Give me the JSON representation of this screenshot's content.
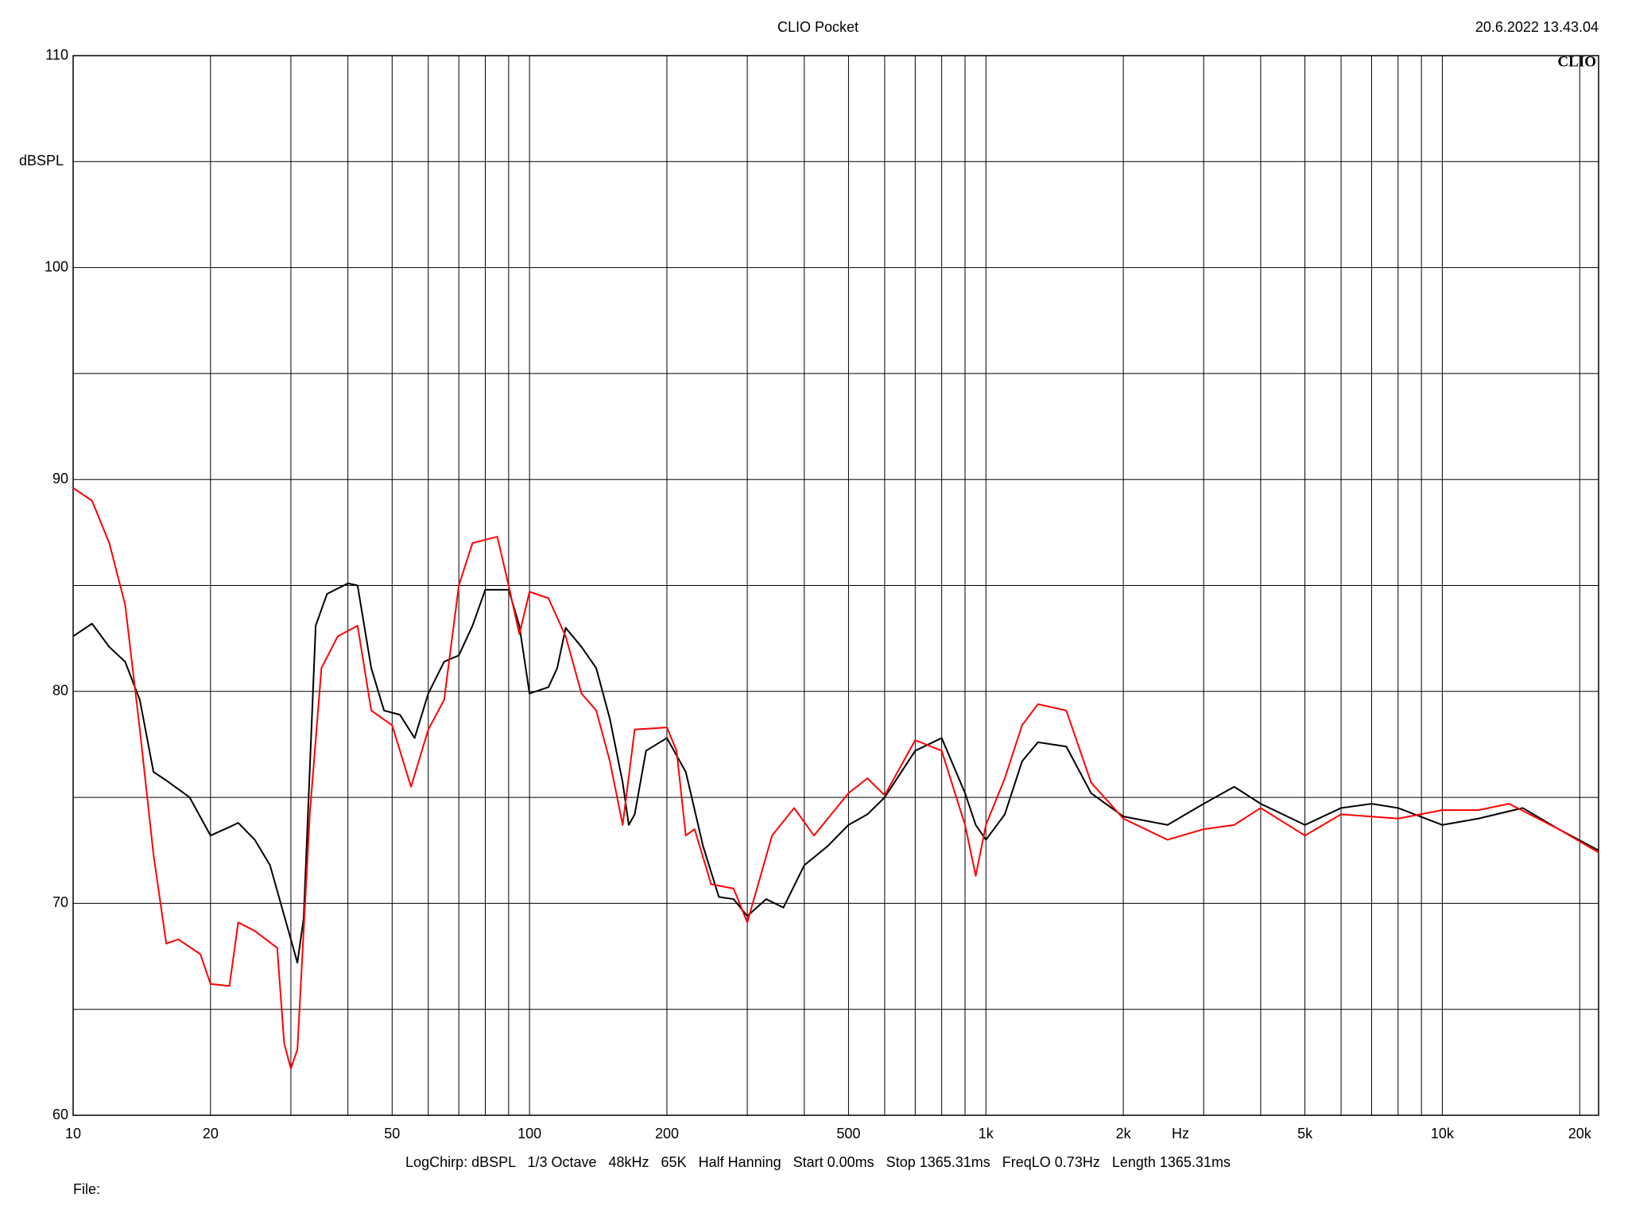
{
  "chart_data": {
    "type": "line",
    "title": "CLIO Pocket",
    "timestamp": "20.6.2022 13.43.04",
    "logo": "CLIO",
    "y_label": "dBSPL",
    "x_label": "Hz",
    "footer": "LogChirp: dBSPL   1/3 Octave   48kHz   65K   Half Hanning   Start 0.00ms   Stop 1365.31ms   FreqLO 0.73Hz   Length 1365.31ms",
    "file_label": "File:",
    "x_log": true,
    "grid": true,
    "xlim": [
      10,
      22000
    ],
    "ylim": [
      60,
      110
    ],
    "yticks": [
      60,
      70,
      80,
      90,
      100,
      110
    ],
    "ygrid_minor": [
      65,
      75,
      85,
      95,
      105
    ],
    "xticks": [
      10,
      20,
      50,
      100,
      200,
      500,
      {
        "value": 1000,
        "label": "1k"
      },
      {
        "value": 2000,
        "label": "2k"
      },
      {
        "value": 5000,
        "label": "5k"
      },
      {
        "value": 10000,
        "label": "10k"
      },
      {
        "value": 20000,
        "label": "20k"
      }
    ],
    "xgrid_minor": [
      30,
      40,
      60,
      70,
      80,
      90,
      300,
      400,
      600,
      700,
      800,
      900,
      3000,
      4000,
      6000,
      7000,
      8000,
      9000
    ],
    "series": [
      {
        "color": "#000000",
        "x": [
          10,
          11,
          12,
          13,
          14,
          15,
          16,
          18,
          20,
          22,
          23,
          25,
          27,
          30,
          31,
          32,
          34,
          36,
          40,
          42,
          45,
          48,
          52,
          56,
          60,
          65,
          70,
          75,
          80,
          90,
          95,
          100,
          110,
          115,
          120,
          130,
          140,
          150,
          160,
          165,
          170,
          180,
          200,
          220,
          240,
          260,
          280,
          300,
          330,
          360,
          400,
          450,
          500,
          550,
          600,
          700,
          800,
          900,
          950,
          1000,
          1100,
          1200,
          1300,
          1500,
          1700,
          2000,
          2500,
          3000,
          3500,
          4000,
          5000,
          6000,
          7000,
          8000,
          10000,
          12000,
          15000,
          18000,
          22000
        ],
        "values": [
          82.6,
          83.2,
          82.1,
          81.4,
          79.6,
          76.2,
          75.8,
          75.0,
          73.2,
          73.6,
          73.8,
          73.0,
          71.8,
          68.3,
          67.2,
          69.3,
          83.1,
          84.6,
          85.1,
          85.0,
          81.1,
          79.1,
          78.9,
          77.8,
          79.9,
          81.4,
          81.7,
          83.1,
          84.8,
          84.8,
          83.1,
          79.9,
          80.2,
          81.1,
          83.0,
          82.1,
          81.1,
          78.7,
          75.7,
          73.7,
          74.2,
          77.2,
          77.8,
          76.2,
          72.7,
          70.3,
          70.2,
          69.4,
          70.2,
          69.8,
          71.8,
          72.7,
          73.7,
          74.2,
          75.0,
          77.2,
          77.8,
          75.2,
          73.7,
          73.0,
          74.2,
          76.7,
          77.6,
          77.4,
          75.2,
          74.1,
          73.7,
          74.7,
          75.5,
          74.7,
          73.7,
          74.5,
          74.7,
          74.5,
          73.7,
          74.0,
          74.5,
          73.5,
          72.5
        ]
      },
      {
        "color": "#ff0000",
        "x": [
          10,
          11,
          12,
          13,
          14,
          15,
          16,
          17,
          19,
          20,
          22,
          23,
          25,
          28,
          29,
          30,
          31,
          33,
          35,
          38,
          42,
          45,
          50,
          55,
          60,
          65,
          70,
          75,
          85,
          90,
          95,
          100,
          110,
          120,
          130,
          140,
          150,
          160,
          170,
          200,
          210,
          220,
          230,
          250,
          280,
          300,
          340,
          380,
          420,
          500,
          550,
          600,
          700,
          800,
          900,
          950,
          1000,
          1100,
          1200,
          1300,
          1500,
          1700,
          2000,
          2500,
          3000,
          3500,
          4000,
          5000,
          6000,
          8000,
          10000,
          12000,
          14000,
          18000,
          22000
        ],
        "values": [
          89.6,
          89.0,
          87.0,
          84.1,
          78.2,
          72.3,
          68.1,
          68.3,
          67.6,
          66.2,
          66.1,
          69.1,
          68.7,
          67.9,
          63.4,
          62.2,
          63.1,
          74.2,
          81.1,
          82.6,
          83.1,
          79.1,
          78.4,
          75.5,
          78.2,
          79.6,
          85.0,
          87.0,
          87.3,
          85.0,
          82.7,
          84.7,
          84.4,
          82.6,
          79.9,
          79.1,
          76.7,
          73.7,
          78.2,
          78.3,
          77.2,
          73.2,
          73.5,
          70.9,
          70.7,
          69.1,
          73.2,
          74.5,
          73.2,
          75.2,
          75.9,
          75.1,
          77.7,
          77.2,
          73.7,
          71.3,
          73.7,
          75.9,
          78.4,
          79.4,
          79.1,
          75.7,
          74.0,
          73.0,
          73.5,
          73.7,
          74.5,
          73.2,
          74.2,
          74.0,
          74.4,
          74.4,
          74.7,
          73.5,
          72.4
        ]
      }
    ]
  }
}
